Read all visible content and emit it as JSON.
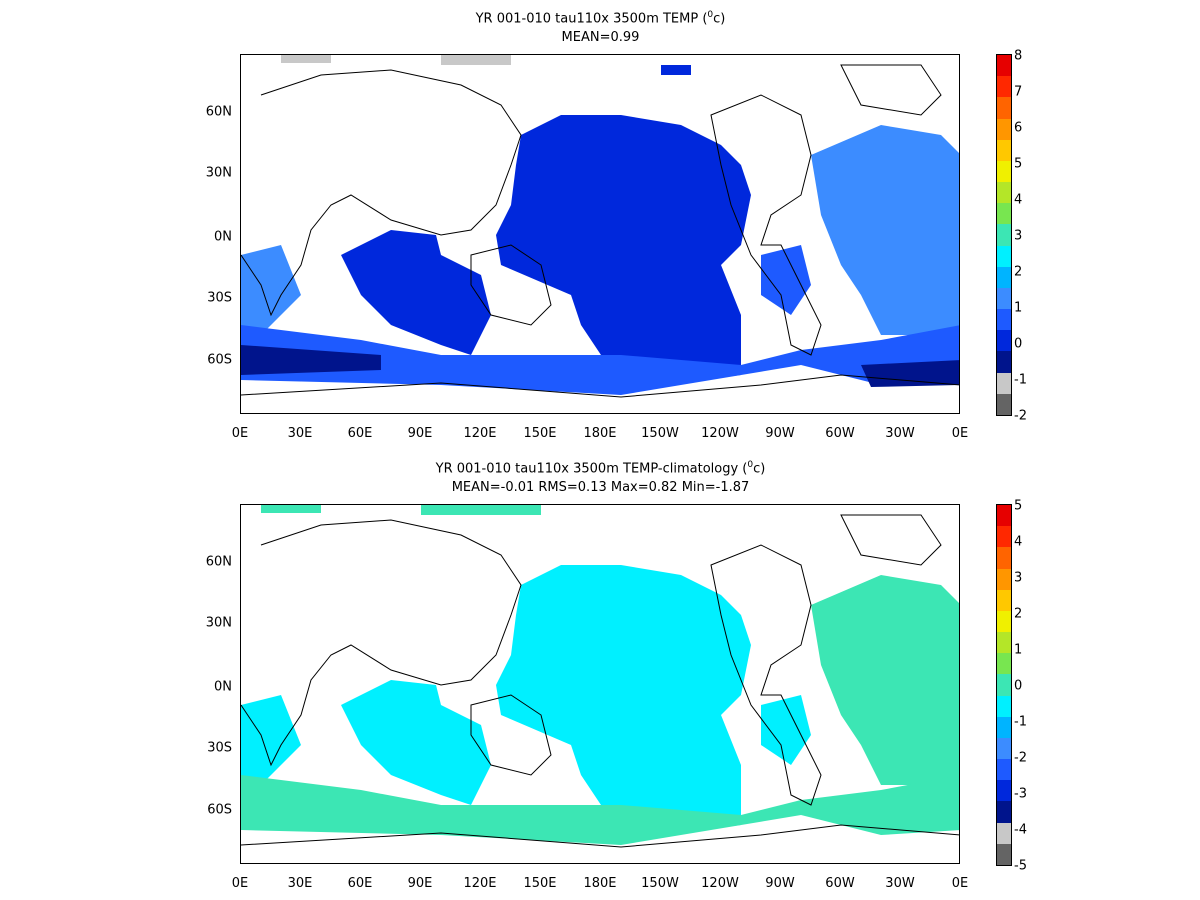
{
  "panels": [
    {
      "title_line1_prefix": "YR 001-010 tau110x 3500m TEMP (",
      "title_sup": "0",
      "title_line1_suffix": "c)",
      "title_line2": "MEAN=0.99",
      "colorbar_labels": [
        "8",
        "7",
        "6",
        "5",
        "4",
        "3",
        "2",
        "1",
        "0",
        "-1",
        "-2"
      ]
    },
    {
      "title_line1_prefix": "YR 001-010 tau110x 3500m TEMP-climatology (",
      "title_sup": "0",
      "title_line1_suffix": "c)",
      "title_line2": "MEAN=-0.01   RMS=0.13   Max=0.82   Min=-1.87",
      "colorbar_labels": [
        "5",
        "4",
        "3",
        "2",
        "1",
        "0",
        "-1",
        "-2",
        "-3",
        "-4",
        "-5"
      ]
    }
  ],
  "axes": {
    "x_ticks": [
      "0E",
      "30E",
      "60E",
      "90E",
      "120E",
      "150E",
      "180E",
      "150W",
      "120W",
      "90W",
      "60W",
      "30W",
      "0E"
    ],
    "y_ticks": [
      "60N",
      "30N",
      "0N",
      "30S",
      "60S"
    ]
  },
  "colors": {
    "scale": [
      "#646464",
      "#c8c8c8",
      "#00148c",
      "#0028dc",
      "#1e5aff",
      "#3c8cff",
      "#00b4ff",
      "#00f0ff",
      "#3ce6b4",
      "#78e650",
      "#b4e628",
      "#f0f000",
      "#ffc800",
      "#ff9600",
      "#ff6400",
      "#ff2800",
      "#e60000"
    ],
    "land": "#ffffff",
    "coast": "#000000"
  }
}
